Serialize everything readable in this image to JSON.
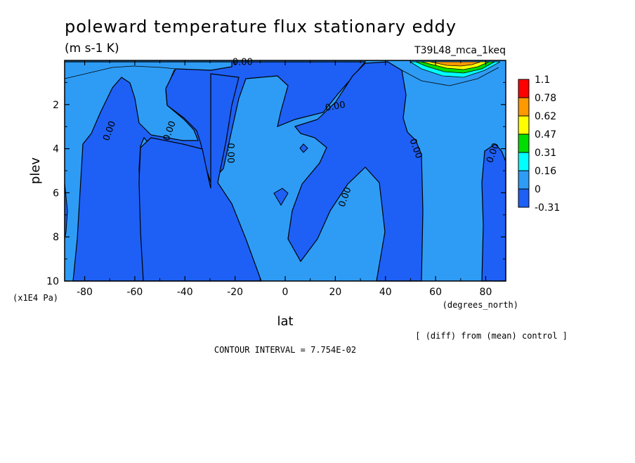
{
  "chart_data": {
    "type": "heatmap",
    "title": "poleward temperature flux stationary eddy",
    "units": "(m s-1 K)",
    "run_label": "T39L48_mca_1keq",
    "xlabel": "lat",
    "xunits": "(degrees_north)",
    "ylabel": "plev",
    "yunits": "(x1E4 Pa)",
    "xlim": [
      -88,
      88
    ],
    "ylim": [
      10,
      0
    ],
    "x_ticks": [
      -80,
      -60,
      -40,
      -20,
      0,
      20,
      40,
      60,
      80
    ],
    "x_tick_labels": [
      "-80",
      "-60",
      "-40",
      "-20",
      "0",
      "20",
      "40",
      "60",
      "80"
    ],
    "y_ticks": [
      2,
      4,
      6,
      8,
      10
    ],
    "y_tick_labels": [
      "2",
      "4",
      "6",
      "8",
      "10"
    ],
    "contour_interval_text": "CONTOUR INTERVAL = 7.754E-02",
    "diff_note": "[ (diff) from (mean) control ]",
    "colorbar": {
      "levels": [
        "1.1",
        "0.78",
        "0.62",
        "0.47",
        "0.31",
        "0.16",
        "0",
        "-0.31"
      ],
      "colors": [
        "#ff0000",
        "#ff9900",
        "#ffff00",
        "#00dd00",
        "#00ffff",
        "#2e9cf5",
        "#1e60f5"
      ]
    },
    "fill_colors": {
      "negative": "#1e60f5",
      "near_zero": "#2e9cf5",
      "low_pos": "#00ffff",
      "mid_pos": "#00dd00",
      "high_pos": "#ffff00",
      "higher_pos": "#ff9900",
      "max_pos": "#ff0000"
    },
    "contour_labels": [
      {
        "text": "0.00",
        "lat": -70,
        "plev": 3.2
      },
      {
        "text": "0.00",
        "lat": -46,
        "plev": 3.2
      },
      {
        "text": "0.00",
        "lat": -22,
        "plev": 4.2
      },
      {
        "text": "0.00",
        "lat": -17,
        "plev": 0.1
      },
      {
        "text": "0.00",
        "lat": 20,
        "plev": 2.1
      },
      {
        "text": "0.00",
        "lat": 24,
        "plev": 6.2
      },
      {
        "text": "0.00",
        "lat": 52,
        "plev": 4.0
      },
      {
        "text": "0.00",
        "lat": 83,
        "plev": 4.2
      }
    ]
  }
}
